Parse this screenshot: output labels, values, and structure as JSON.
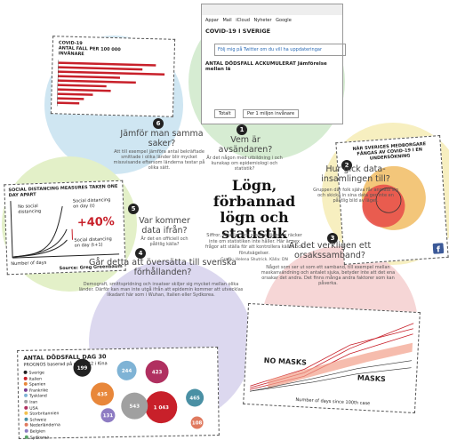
{
  "title": "Lögn, förbannad lögn och statistik",
  "intro": "Siffror, tabeller och snygga diagram räcker inte om statistiken inte håller. Här är sex frågor att ställa för att kontrollera källor och förutsägelser.",
  "credit": "Grafik: Helena Shutrick. Källa: DN",
  "sections": [
    {
      "number": "1",
      "heading": "Vem är avsändaren?",
      "body": "Är det någon med utbildning i och kunskap om epidemiologi och statistik?"
    },
    {
      "number": "2",
      "heading": "Hur gick data-insamlingen till?",
      "body": "Gruppen där folk själva får anmäla sig och skicka in sina data ger inte en pålitlig bild av läget."
    },
    {
      "number": "3",
      "heading": "Är det verkligen ett orsakssamband?",
      "body": "Något som ser ut som ett samband, till exempel mellan maskanvändning och antalet sjuka, betyder inte att det ena orsakar det andra. Det finns många andra faktorer som kan påverka."
    },
    {
      "number": "4",
      "heading": "Går detta att översätta till svenska förhållanden?",
      "body": "Demografi, smittspridning och insatser skiljer sig mycket mellan olika länder. Därför kan man inte utgå ifrån att epidemin kommer att utvecklas likadant här som i Wuhan, Italien eller Sydkorea."
    },
    {
      "number": "5",
      "heading": "Var kommer data ifrån?",
      "body": "Är det en officiell och pålitlig källa?"
    },
    {
      "number": "6",
      "heading": "Jämför man samma saker?",
      "body": "Att till exempel jämföra antal bekräftade smittade i olika länder blir mycket missvisande eftersom länderna testar på olika sätt."
    }
  ],
  "bar_panel": {
    "title": "COVID-19",
    "subtitle": "ANTAL FALL PER 100 000 INVÅNARE"
  },
  "browser_panel": {
    "tabs": [
      "Appar",
      "Mail",
      "iCloud",
      "Nyheter",
      "Google"
    ],
    "page_title": "COVID-19 I SVERIGE",
    "twitter": "Följ mig på Twitter om du vill ha uppdateringar",
    "chart_title": "ANTAL DÖDSFALL ACKUMULERAT Jämförelse mellan lä",
    "buttons": [
      "Totalt",
      "Per 1 miljon invånare"
    ]
  },
  "venn_panel": {
    "title": "NÄR SVERIGES MEDBORGARE FÅNGAS AV COVID-19 I EN UNDERSÖKNING"
  },
  "distancing_panel": {
    "title": "SOCIAL DISTANCING MEASURES TAKEN ONE DAY APART",
    "labels": [
      "No social distancing",
      "Social distancing on day (t)",
      "Social distancing on day (t+1)"
    ],
    "delta": "+40%",
    "x_label": "Number of days",
    "source": "Source: Greg Greenbaum"
  },
  "mask_panel": {
    "labels": [
      "NO MASKS",
      "MASKS"
    ],
    "x_label": "Number of days since 100th case"
  },
  "bubble_panel": {
    "title": "ANTAL DÖDSFALL DAG 30",
    "subtitle": "PROGNOS baserad på dag 0-22 i Kina",
    "legend": [
      "Sverige",
      "Italien",
      "Spanien",
      "Frankrike",
      "Tyskland",
      "Iran",
      "USA",
      "Storbritannien",
      "Schweiz",
      "Nederländerna",
      "Belgien",
      "Sydkorea"
    ],
    "bubbles": [
      "199",
      "435",
      "244",
      "423",
      "131",
      "1 043",
      "543",
      "465",
      "108"
    ]
  }
}
